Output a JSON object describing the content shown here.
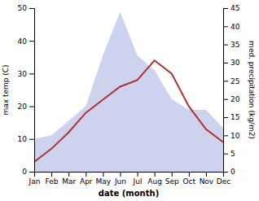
{
  "chart_data": {
    "type": "line",
    "categories": [
      "Jan",
      "Feb",
      "Mar",
      "Apr",
      "May",
      "Jun",
      "Jul",
      "Aug",
      "Sep",
      "Oct",
      "Nov",
      "Dec"
    ],
    "series": [
      {
        "type": "area",
        "axis": "y2",
        "color": "#b8c0e8",
        "values": [
          9,
          10,
          14,
          18,
          32,
          44,
          32,
          28,
          20,
          17,
          17,
          12
        ]
      },
      {
        "type": "line",
        "color": "#b03030",
        "values": [
          3,
          7,
          12,
          18,
          22,
          26,
          28,
          34,
          30,
          20,
          13,
          9
        ]
      }
    ],
    "xlabel": "date (month)",
    "ylabel": "max temp (C)",
    "y2label": "med. precipitation (kg/m2)",
    "ylim": [
      0,
      50
    ],
    "yticks": [
      0,
      10,
      20,
      30,
      40,
      50
    ],
    "y2lim": [
      0,
      45
    ],
    "y2ticks": [
      0,
      5,
      10,
      15,
      20,
      25,
      30,
      35,
      40,
      45
    ]
  }
}
